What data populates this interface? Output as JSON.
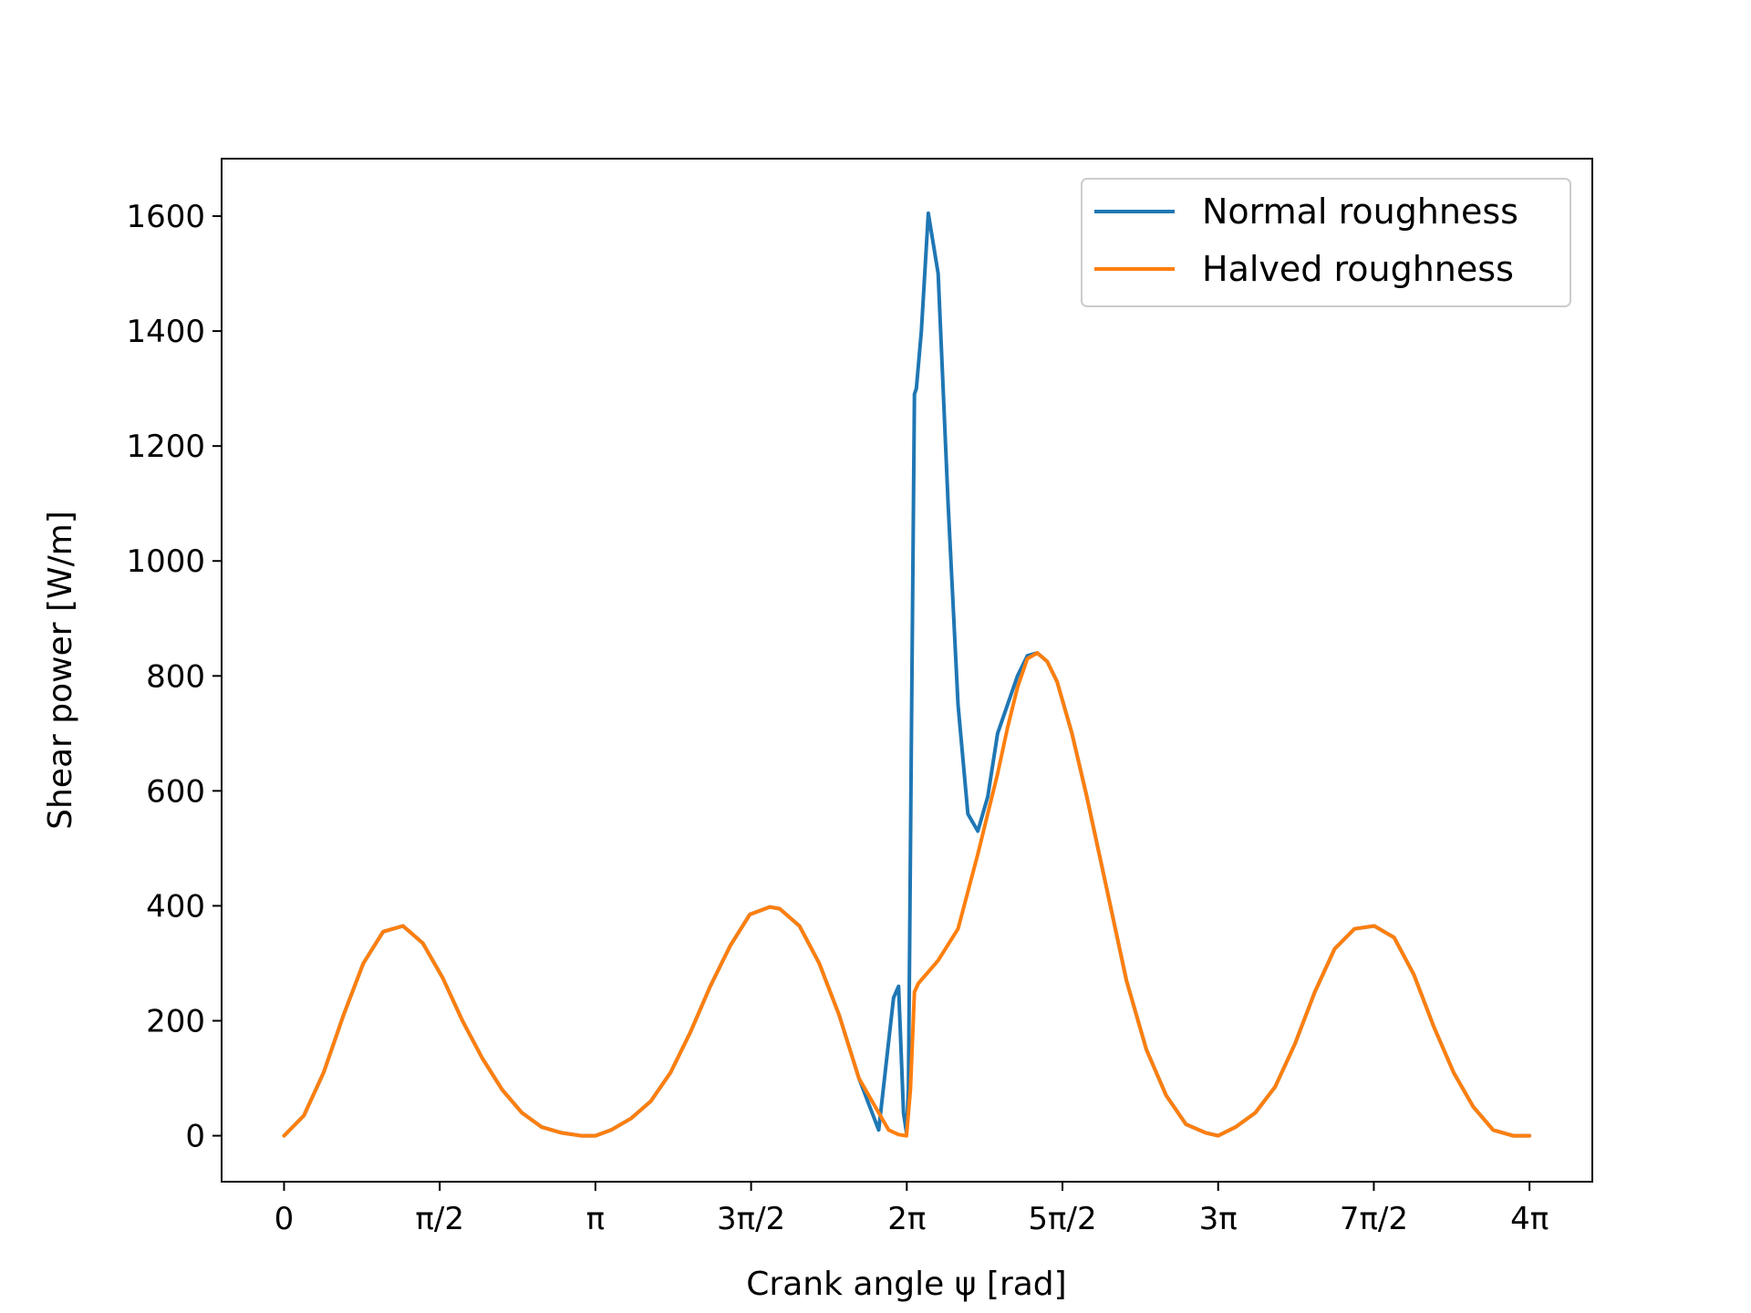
{
  "chart_data": {
    "type": "line",
    "title": "",
    "xlabel": "Crank angle ψ [rad]",
    "ylabel": "Shear power [W/m]",
    "xlim": [
      -0.63,
      13.2
    ],
    "ylim": [
      -80,
      1700
    ],
    "grid": false,
    "legend_position": "top-right",
    "x_ticks": [
      {
        "value": 0,
        "label": "0"
      },
      {
        "value": 1.5708,
        "label": "π/2"
      },
      {
        "value": 3.1416,
        "label": "π"
      },
      {
        "value": 4.7124,
        "label": "3π/2"
      },
      {
        "value": 6.2832,
        "label": "2π"
      },
      {
        "value": 7.854,
        "label": "5π/2"
      },
      {
        "value": 9.4248,
        "label": "3π"
      },
      {
        "value": 10.9956,
        "label": "7π/2"
      },
      {
        "value": 12.5664,
        "label": "4π"
      }
    ],
    "y_ticks": [
      {
        "value": 0,
        "label": "0"
      },
      {
        "value": 200,
        "label": "200"
      },
      {
        "value": 400,
        "label": "400"
      },
      {
        "value": 600,
        "label": "600"
      },
      {
        "value": 800,
        "label": "800"
      },
      {
        "value": 1000,
        "label": "1000"
      },
      {
        "value": 1200,
        "label": "1200"
      },
      {
        "value": 1400,
        "label": "1400"
      },
      {
        "value": 1600,
        "label": "1600"
      }
    ],
    "series": [
      {
        "name": "Normal roughness",
        "color": "#1f77b4",
        "x": [
          0,
          0.2,
          0.4,
          0.6,
          0.8,
          1.0,
          1.2,
          1.4,
          1.6,
          1.8,
          2.0,
          2.2,
          2.4,
          2.6,
          2.8,
          3.0,
          3.1416,
          3.3,
          3.5,
          3.7,
          3.9,
          4.1,
          4.3,
          4.5,
          4.7,
          4.9,
          5.0,
          5.2,
          5.4,
          5.6,
          5.8,
          6.0,
          6.15,
          6.2,
          6.25,
          6.28,
          6.3,
          6.33,
          6.36,
          6.38,
          6.43,
          6.5,
          6.6,
          6.7,
          6.8,
          6.9,
          7.0,
          7.1,
          7.2,
          7.3,
          7.4,
          7.5,
          7.6,
          7.7,
          7.8,
          7.95,
          8.1,
          8.3,
          8.5,
          8.7,
          8.9,
          9.1,
          9.3,
          9.4248,
          9.6,
          9.8,
          10.0,
          10.2,
          10.4,
          10.6,
          10.8,
          11.0,
          11.2,
          11.4,
          11.6,
          11.8,
          12.0,
          12.2,
          12.4,
          12.5664
        ],
        "y": [
          0,
          35,
          110,
          210,
          300,
          355,
          365,
          335,
          275,
          200,
          135,
          80,
          40,
          15,
          5,
          0,
          0,
          10,
          30,
          60,
          110,
          180,
          260,
          330,
          385,
          398,
          395,
          365,
          300,
          210,
          100,
          10,
          240,
          260,
          40,
          5,
          80,
          700,
          1290,
          1300,
          1400,
          1605,
          1500,
          1100,
          750,
          560,
          530,
          590,
          700,
          750,
          800,
          835,
          840,
          825,
          790,
          700,
          590,
          430,
          270,
          150,
          70,
          20,
          5,
          0,
          15,
          40,
          85,
          160,
          250,
          325,
          360,
          365,
          345,
          280,
          190,
          110,
          50,
          10,
          0,
          0
        ]
      },
      {
        "name": "Halved roughness",
        "color": "#ff7f0e",
        "x": [
          0,
          0.2,
          0.4,
          0.6,
          0.8,
          1.0,
          1.2,
          1.4,
          1.6,
          1.8,
          2.0,
          2.2,
          2.4,
          2.6,
          2.8,
          3.0,
          3.1416,
          3.3,
          3.5,
          3.7,
          3.9,
          4.1,
          4.3,
          4.5,
          4.7,
          4.9,
          5.0,
          5.2,
          5.4,
          5.6,
          5.8,
          6.0,
          6.1,
          6.2,
          6.28,
          6.32,
          6.36,
          6.4,
          6.45,
          6.5,
          6.6,
          6.8,
          7.0,
          7.2,
          7.3,
          7.4,
          7.5,
          7.6,
          7.7,
          7.8,
          7.95,
          8.1,
          8.3,
          8.5,
          8.7,
          8.9,
          9.1,
          9.3,
          9.4248,
          9.6,
          9.8,
          10.0,
          10.2,
          10.4,
          10.6,
          10.8,
          11.0,
          11.2,
          11.4,
          11.6,
          11.8,
          12.0,
          12.2,
          12.4,
          12.5664
        ],
        "y": [
          0,
          35,
          110,
          210,
          300,
          355,
          365,
          335,
          275,
          200,
          135,
          80,
          40,
          15,
          5,
          0,
          0,
          10,
          30,
          60,
          110,
          180,
          260,
          330,
          385,
          398,
          395,
          365,
          300,
          210,
          100,
          40,
          10,
          2,
          0,
          80,
          250,
          265,
          275,
          285,
          305,
          360,
          490,
          630,
          710,
          780,
          830,
          840,
          825,
          790,
          700,
          590,
          430,
          270,
          150,
          70,
          20,
          5,
          0,
          15,
          40,
          85,
          160,
          250,
          325,
          360,
          365,
          345,
          280,
          190,
          110,
          50,
          10,
          0,
          0
        ]
      }
    ]
  }
}
